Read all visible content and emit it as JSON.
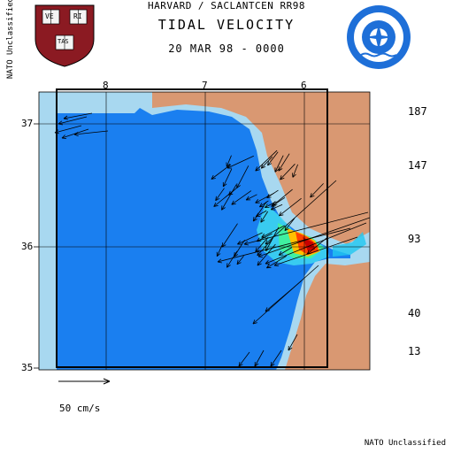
{
  "header": {
    "line1": "HARVARD / SACLANTCEN RR98",
    "title": "TIDAL VELOCITY",
    "date": "20 MAR 98 - 0000"
  },
  "logos": {
    "harvard": {
      "letters": [
        "VE",
        "RI",
        "TAS"
      ],
      "icon": "harvard-shield-icon"
    },
    "nato": {
      "icon": "nato-saclantcen-seal-icon"
    }
  },
  "classification": "NATO Unclassified",
  "map": {
    "longitude_labels": [
      "8",
      "7",
      "6"
    ],
    "latitude_labels": [
      "37",
      "36",
      "35"
    ],
    "colors": {
      "land": "#d99872",
      "shallow": "#a8d8f0",
      "ocean": "#1a7ff0"
    }
  },
  "colorbar": {
    "tick_labels": [
      "187",
      "147",
      "93",
      "40",
      "13"
    ],
    "colors": [
      "#2a78f0",
      "#2aa0f0",
      "#10c0f0",
      "#20e0f0",
      "#20f0d8",
      "#20f0a8",
      "#40f040",
      "#90f020",
      "#ffc000",
      "#ff8000",
      "#ff4000",
      "#ff1000",
      "#c80000"
    ]
  },
  "scale": {
    "label": "50 cm/s"
  }
}
